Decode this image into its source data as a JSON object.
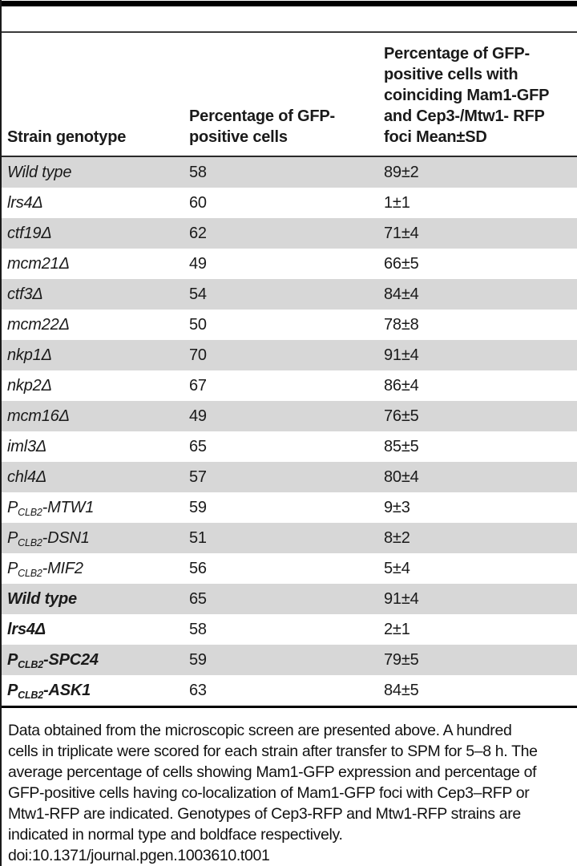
{
  "page": {
    "background": "#ffffff",
    "text_color": "#1a1a1a",
    "row_shade_color": "#d7d7d7",
    "rule_color": "#000000"
  },
  "table": {
    "headers": {
      "strain": "Strain genotype",
      "gfp_positive": "Percentage of GFP-\npositive cells",
      "coinciding": "Percentage of GFP-\npositive cells with\ncoinciding Mam1-GFP\nand Cep3-/Mtw1- RFP\nfoci Mean±SD"
    },
    "rows": [
      {
        "genotype": [
          {
            "t": "Wild type"
          }
        ],
        "bold": false,
        "gfp_positive": "58",
        "coinciding": "89±2"
      },
      {
        "genotype": [
          {
            "t": "lrs4Δ"
          }
        ],
        "bold": false,
        "gfp_positive": "60",
        "coinciding": "1±1"
      },
      {
        "genotype": [
          {
            "t": "ctf19Δ"
          }
        ],
        "bold": false,
        "gfp_positive": "62",
        "coinciding": "71±4"
      },
      {
        "genotype": [
          {
            "t": "mcm21Δ"
          }
        ],
        "bold": false,
        "gfp_positive": "49",
        "coinciding": "66±5"
      },
      {
        "genotype": [
          {
            "t": "ctf3Δ"
          }
        ],
        "bold": false,
        "gfp_positive": "54",
        "coinciding": "84±4"
      },
      {
        "genotype": [
          {
            "t": "mcm22Δ"
          }
        ],
        "bold": false,
        "gfp_positive": "50",
        "coinciding": "78±8"
      },
      {
        "genotype": [
          {
            "t": "nkp1Δ"
          }
        ],
        "bold": false,
        "gfp_positive": "70",
        "coinciding": "91±4"
      },
      {
        "genotype": [
          {
            "t": "nkp2Δ"
          }
        ],
        "bold": false,
        "gfp_positive": "67",
        "coinciding": "86±4"
      },
      {
        "genotype": [
          {
            "t": "mcm16Δ"
          }
        ],
        "bold": false,
        "gfp_positive": "49",
        "coinciding": "76±5"
      },
      {
        "genotype": [
          {
            "t": "iml3Δ"
          }
        ],
        "bold": false,
        "gfp_positive": "65",
        "coinciding": "85±5"
      },
      {
        "genotype": [
          {
            "t": "chl4Δ"
          }
        ],
        "bold": false,
        "gfp_positive": "57",
        "coinciding": "80±4"
      },
      {
        "genotype": [
          {
            "t": "P"
          },
          {
            "t": "CLB2",
            "sub": true
          },
          {
            "t": "-MTW1"
          }
        ],
        "bold": false,
        "gfp_positive": "59",
        "coinciding": "9±3"
      },
      {
        "genotype": [
          {
            "t": "P"
          },
          {
            "t": "CLB2",
            "sub": true
          },
          {
            "t": "-DSN1"
          }
        ],
        "bold": false,
        "gfp_positive": "51",
        "coinciding": "8±2"
      },
      {
        "genotype": [
          {
            "t": "P"
          },
          {
            "t": "CLB2",
            "sub": true
          },
          {
            "t": "-MIF2"
          }
        ],
        "bold": false,
        "gfp_positive": "56",
        "coinciding": "5±4"
      },
      {
        "genotype": [
          {
            "t": "Wild type"
          }
        ],
        "bold": true,
        "gfp_positive": "65",
        "coinciding": "91±4"
      },
      {
        "genotype": [
          {
            "t": "lrs4Δ"
          }
        ],
        "bold": true,
        "gfp_positive": "58",
        "coinciding": "2±1"
      },
      {
        "genotype": [
          {
            "t": "P"
          },
          {
            "t": "CLB2",
            "sub": true
          },
          {
            "t": "-SPC24"
          }
        ],
        "bold": true,
        "gfp_positive": "59",
        "coinciding": "79±5"
      },
      {
        "genotype": [
          {
            "t": "P"
          },
          {
            "t": "CLB2",
            "sub": true
          },
          {
            "t": "-ASK1"
          }
        ],
        "bold": true,
        "gfp_positive": "63",
        "coinciding": "84±5"
      }
    ]
  },
  "footnote": {
    "lines": [
      "Data obtained from the microscopic screen are presented above. A hundred",
      "cells in triplicate were scored for each strain after transfer to SPM for 5–8 h. The",
      "average percentage of cells showing Mam1-GFP expression and percentage of",
      "GFP-positive cells having co-localization of Mam1-GFP foci with Cep3–RFP or",
      "Mtw1-RFP are indicated. Genotypes of Cep3-RFP and Mtw1-RFP strains are",
      "indicated in normal type and boldface respectively."
    ],
    "doi": "doi:10.1371/journal.pgen.1003610.t001"
  }
}
